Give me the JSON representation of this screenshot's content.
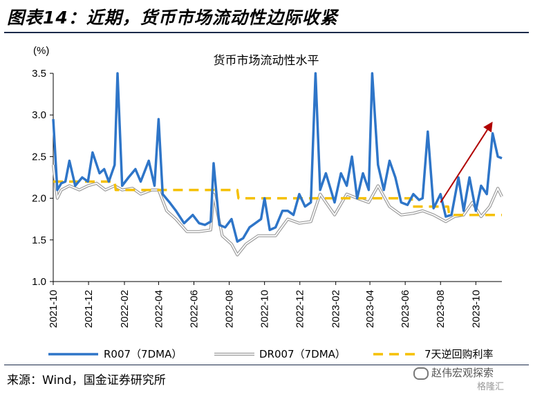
{
  "header": {
    "title": "图表14：近期，货币市场流动性边际收紧"
  },
  "footer": {
    "source": "来源：Wind，国金证券研究所",
    "watermark": "赵伟宏观探索",
    "watermark2": "格隆汇"
  },
  "colors": {
    "r007": "#2e75c8",
    "dr007": "#9b9b9b",
    "repo": "#f5c000",
    "arrow": "#b00000",
    "rule": "#1b2a4a"
  },
  "chart_data": {
    "type": "line",
    "title": "货币市场流动性水平",
    "ylabel": "(%)",
    "ylim": [
      1.0,
      3.5
    ],
    "yticks": [
      "1.0",
      "1.5",
      "2.0",
      "2.5",
      "3.0",
      "3.5"
    ],
    "xticks": [
      "2021-10",
      "2021-12",
      "2022-02",
      "2022-04",
      "2022-06",
      "2022-08",
      "2022-10",
      "2022-12",
      "2023-02",
      "2023-04",
      "2023-06",
      "2023-08",
      "2023-10"
    ],
    "grid": false,
    "legend": "bottom",
    "series": [
      {
        "name": "R007（7DMA）",
        "x": [
          "2021-10-01",
          "2021-10-08",
          "2021-10-15",
          "2021-10-22",
          "2021-10-29",
          "2021-11-08",
          "2021-11-20",
          "2021-11-30",
          "2021-12-08",
          "2021-12-20",
          "2021-12-28",
          "2022-01-05",
          "2022-01-15",
          "2022-01-20",
          "2022-01-28",
          "2022-02-08",
          "2022-02-20",
          "2022-03-01",
          "2022-03-15",
          "2022-03-25",
          "2022-04-01",
          "2022-04-08",
          "2022-04-20",
          "2022-05-01",
          "2022-05-15",
          "2022-05-30",
          "2022-06-10",
          "2022-06-20",
          "2022-06-30",
          "2022-07-05",
          "2022-07-15",
          "2022-07-25",
          "2022-08-05",
          "2022-08-15",
          "2022-08-25",
          "2022-09-05",
          "2022-09-15",
          "2022-09-25",
          "2022-10-01",
          "2022-10-10",
          "2022-10-20",
          "2022-11-01",
          "2022-11-10",
          "2022-11-20",
          "2022-11-30",
          "2022-12-10",
          "2022-12-20",
          "2022-12-28",
          "2023-01-05",
          "2023-01-15",
          "2023-01-30",
          "2023-02-10",
          "2023-02-20",
          "2023-03-01",
          "2023-03-10",
          "2023-03-20",
          "2023-03-30",
          "2023-04-05",
          "2023-04-15",
          "2023-04-25",
          "2023-05-05",
          "2023-05-15",
          "2023-05-25",
          "2023-06-05",
          "2023-06-15",
          "2023-06-25",
          "2023-07-01",
          "2023-07-10",
          "2023-07-20",
          "2023-08-01",
          "2023-08-10",
          "2023-08-20",
          "2023-09-01",
          "2023-09-10",
          "2023-09-20",
          "2023-10-01",
          "2023-10-10",
          "2023-10-20",
          "2023-10-30",
          "2023-11-08",
          "2023-11-15"
        ],
        "values": [
          2.95,
          2.1,
          2.18,
          2.2,
          2.45,
          2.15,
          2.25,
          2.2,
          2.55,
          2.3,
          2.35,
          2.2,
          2.4,
          3.5,
          2.15,
          2.25,
          2.35,
          2.2,
          2.45,
          2.15,
          2.95,
          2.05,
          1.95,
          1.85,
          1.7,
          1.8,
          1.7,
          1.68,
          1.72,
          2.42,
          1.68,
          1.65,
          1.75,
          1.48,
          1.52,
          1.65,
          1.7,
          1.75,
          2.0,
          1.62,
          1.65,
          1.85,
          1.85,
          1.8,
          2.05,
          1.9,
          1.95,
          3.5,
          2.1,
          2.3,
          1.95,
          2.3,
          2.15,
          2.5,
          2.0,
          2.3,
          2.1,
          3.5,
          2.4,
          2.1,
          2.45,
          2.25,
          1.95,
          1.92,
          2.05,
          1.98,
          2.0,
          2.8,
          1.88,
          2.05,
          1.78,
          1.8,
          2.25,
          1.85,
          2.25,
          1.85,
          2.15,
          2.05,
          2.78,
          2.5,
          2.48
        ]
      },
      {
        "name": "DR007（7DMA）",
        "x": [
          "2021-10-01",
          "2021-10-08",
          "2021-10-15",
          "2021-10-29",
          "2021-11-15",
          "2021-11-30",
          "2021-12-15",
          "2021-12-30",
          "2022-01-15",
          "2022-01-28",
          "2022-02-15",
          "2022-03-01",
          "2022-03-20",
          "2022-04-01",
          "2022-04-15",
          "2022-05-01",
          "2022-05-20",
          "2022-06-10",
          "2022-06-30",
          "2022-07-05",
          "2022-07-20",
          "2022-08-05",
          "2022-08-15",
          "2022-08-30",
          "2022-09-20",
          "2022-10-05",
          "2022-10-20",
          "2022-11-10",
          "2022-11-30",
          "2022-12-20",
          "2023-01-05",
          "2023-01-30",
          "2023-02-20",
          "2023-03-10",
          "2023-03-30",
          "2023-04-15",
          "2023-05-05",
          "2023-05-25",
          "2023-06-15",
          "2023-07-01",
          "2023-07-20",
          "2023-08-10",
          "2023-08-25",
          "2023-09-10",
          "2023-09-25",
          "2023-10-10",
          "2023-10-25",
          "2023-11-08",
          "2023-11-15"
        ],
        "values": [
          2.4,
          2.0,
          2.1,
          2.15,
          2.1,
          2.15,
          2.18,
          2.1,
          2.15,
          2.1,
          2.12,
          2.05,
          2.1,
          2.1,
          1.85,
          1.75,
          1.6,
          1.6,
          1.62,
          2.05,
          1.55,
          1.45,
          1.32,
          1.45,
          1.55,
          1.55,
          1.55,
          1.75,
          1.7,
          1.72,
          2.05,
          1.8,
          2.05,
          2.0,
          1.95,
          2.15,
          1.9,
          1.8,
          1.82,
          1.85,
          1.8,
          1.72,
          1.78,
          1.8,
          1.95,
          1.78,
          1.9,
          2.12,
          2.02
        ]
      },
      {
        "name": "7天逆回购利率",
        "x": [
          "2021-10-01",
          "2022-01-15",
          "2022-01-17",
          "2022-08-15",
          "2022-08-17",
          "2023-06-12",
          "2023-06-14",
          "2023-08-14",
          "2023-08-16",
          "2023-11-15"
        ],
        "values": [
          2.2,
          2.2,
          2.1,
          2.1,
          2.0,
          2.0,
          1.9,
          1.9,
          1.8,
          1.8
        ]
      }
    ],
    "annotations": [
      {
        "type": "arrow",
        "from": [
          "2023-08-01",
          1.95
        ],
        "to": [
          "2023-10-30",
          2.92
        ]
      }
    ]
  }
}
